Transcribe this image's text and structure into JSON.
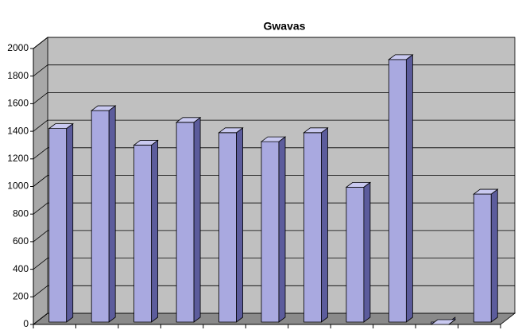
{
  "chart_data": {
    "type": "bar3d",
    "title": "Gwavas",
    "categories": [
      null,
      null,
      null,
      null,
      null,
      null,
      null,
      null,
      null,
      null,
      null
    ],
    "values": [
      1420,
      1550,
      1300,
      1465,
      1390,
      1325,
      1390,
      995,
      1920,
      0,
      945
    ],
    "color": "#a9a9e0",
    "ylim": [
      0,
      2000
    ],
    "yticks": [
      0,
      200,
      400,
      600,
      800,
      1000,
      1200,
      1400,
      1600,
      1800,
      2000
    ],
    "grid": true
  }
}
